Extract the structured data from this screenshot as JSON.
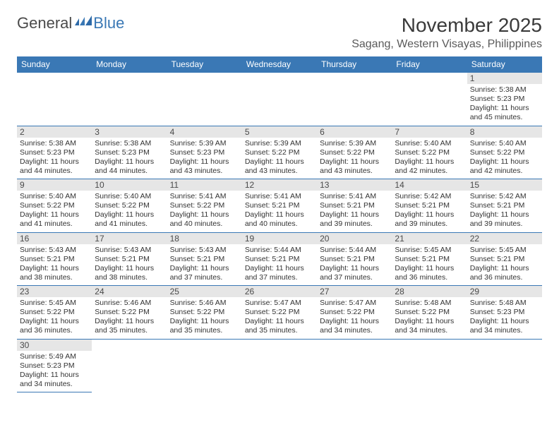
{
  "logo": {
    "text1": "General",
    "text2": "Blue"
  },
  "title": "November 2025",
  "location": "Sagang, Western Visayas, Philippines",
  "colors": {
    "header_bg": "#3a78b5",
    "header_text": "#ffffff",
    "border": "#3a78b5",
    "daynum_bg": "#e6e6e6",
    "text": "#333333"
  },
  "weekdays": [
    "Sunday",
    "Monday",
    "Tuesday",
    "Wednesday",
    "Thursday",
    "Friday",
    "Saturday"
  ],
  "weeks": [
    [
      null,
      null,
      null,
      null,
      null,
      null,
      {
        "d": "1",
        "sr": "Sunrise: 5:38 AM",
        "ss": "Sunset: 5:23 PM",
        "dl1": "Daylight: 11 hours",
        "dl2": "and 45 minutes."
      }
    ],
    [
      {
        "d": "2",
        "sr": "Sunrise: 5:38 AM",
        "ss": "Sunset: 5:23 PM",
        "dl1": "Daylight: 11 hours",
        "dl2": "and 44 minutes."
      },
      {
        "d": "3",
        "sr": "Sunrise: 5:38 AM",
        "ss": "Sunset: 5:23 PM",
        "dl1": "Daylight: 11 hours",
        "dl2": "and 44 minutes."
      },
      {
        "d": "4",
        "sr": "Sunrise: 5:39 AM",
        "ss": "Sunset: 5:23 PM",
        "dl1": "Daylight: 11 hours",
        "dl2": "and 43 minutes."
      },
      {
        "d": "5",
        "sr": "Sunrise: 5:39 AM",
        "ss": "Sunset: 5:22 PM",
        "dl1": "Daylight: 11 hours",
        "dl2": "and 43 minutes."
      },
      {
        "d": "6",
        "sr": "Sunrise: 5:39 AM",
        "ss": "Sunset: 5:22 PM",
        "dl1": "Daylight: 11 hours",
        "dl2": "and 43 minutes."
      },
      {
        "d": "7",
        "sr": "Sunrise: 5:40 AM",
        "ss": "Sunset: 5:22 PM",
        "dl1": "Daylight: 11 hours",
        "dl2": "and 42 minutes."
      },
      {
        "d": "8",
        "sr": "Sunrise: 5:40 AM",
        "ss": "Sunset: 5:22 PM",
        "dl1": "Daylight: 11 hours",
        "dl2": "and 42 minutes."
      }
    ],
    [
      {
        "d": "9",
        "sr": "Sunrise: 5:40 AM",
        "ss": "Sunset: 5:22 PM",
        "dl1": "Daylight: 11 hours",
        "dl2": "and 41 minutes."
      },
      {
        "d": "10",
        "sr": "Sunrise: 5:40 AM",
        "ss": "Sunset: 5:22 PM",
        "dl1": "Daylight: 11 hours",
        "dl2": "and 41 minutes."
      },
      {
        "d": "11",
        "sr": "Sunrise: 5:41 AM",
        "ss": "Sunset: 5:22 PM",
        "dl1": "Daylight: 11 hours",
        "dl2": "and 40 minutes."
      },
      {
        "d": "12",
        "sr": "Sunrise: 5:41 AM",
        "ss": "Sunset: 5:21 PM",
        "dl1": "Daylight: 11 hours",
        "dl2": "and 40 minutes."
      },
      {
        "d": "13",
        "sr": "Sunrise: 5:41 AM",
        "ss": "Sunset: 5:21 PM",
        "dl1": "Daylight: 11 hours",
        "dl2": "and 39 minutes."
      },
      {
        "d": "14",
        "sr": "Sunrise: 5:42 AM",
        "ss": "Sunset: 5:21 PM",
        "dl1": "Daylight: 11 hours",
        "dl2": "and 39 minutes."
      },
      {
        "d": "15",
        "sr": "Sunrise: 5:42 AM",
        "ss": "Sunset: 5:21 PM",
        "dl1": "Daylight: 11 hours",
        "dl2": "and 39 minutes."
      }
    ],
    [
      {
        "d": "16",
        "sr": "Sunrise: 5:43 AM",
        "ss": "Sunset: 5:21 PM",
        "dl1": "Daylight: 11 hours",
        "dl2": "and 38 minutes."
      },
      {
        "d": "17",
        "sr": "Sunrise: 5:43 AM",
        "ss": "Sunset: 5:21 PM",
        "dl1": "Daylight: 11 hours",
        "dl2": "and 38 minutes."
      },
      {
        "d": "18",
        "sr": "Sunrise: 5:43 AM",
        "ss": "Sunset: 5:21 PM",
        "dl1": "Daylight: 11 hours",
        "dl2": "and 37 minutes."
      },
      {
        "d": "19",
        "sr": "Sunrise: 5:44 AM",
        "ss": "Sunset: 5:21 PM",
        "dl1": "Daylight: 11 hours",
        "dl2": "and 37 minutes."
      },
      {
        "d": "20",
        "sr": "Sunrise: 5:44 AM",
        "ss": "Sunset: 5:21 PM",
        "dl1": "Daylight: 11 hours",
        "dl2": "and 37 minutes."
      },
      {
        "d": "21",
        "sr": "Sunrise: 5:45 AM",
        "ss": "Sunset: 5:21 PM",
        "dl1": "Daylight: 11 hours",
        "dl2": "and 36 minutes."
      },
      {
        "d": "22",
        "sr": "Sunrise: 5:45 AM",
        "ss": "Sunset: 5:21 PM",
        "dl1": "Daylight: 11 hours",
        "dl2": "and 36 minutes."
      }
    ],
    [
      {
        "d": "23",
        "sr": "Sunrise: 5:45 AM",
        "ss": "Sunset: 5:22 PM",
        "dl1": "Daylight: 11 hours",
        "dl2": "and 36 minutes."
      },
      {
        "d": "24",
        "sr": "Sunrise: 5:46 AM",
        "ss": "Sunset: 5:22 PM",
        "dl1": "Daylight: 11 hours",
        "dl2": "and 35 minutes."
      },
      {
        "d": "25",
        "sr": "Sunrise: 5:46 AM",
        "ss": "Sunset: 5:22 PM",
        "dl1": "Daylight: 11 hours",
        "dl2": "and 35 minutes."
      },
      {
        "d": "26",
        "sr": "Sunrise: 5:47 AM",
        "ss": "Sunset: 5:22 PM",
        "dl1": "Daylight: 11 hours",
        "dl2": "and 35 minutes."
      },
      {
        "d": "27",
        "sr": "Sunrise: 5:47 AM",
        "ss": "Sunset: 5:22 PM",
        "dl1": "Daylight: 11 hours",
        "dl2": "and 34 minutes."
      },
      {
        "d": "28",
        "sr": "Sunrise: 5:48 AM",
        "ss": "Sunset: 5:22 PM",
        "dl1": "Daylight: 11 hours",
        "dl2": "and 34 minutes."
      },
      {
        "d": "29",
        "sr": "Sunrise: 5:48 AM",
        "ss": "Sunset: 5:23 PM",
        "dl1": "Daylight: 11 hours",
        "dl2": "and 34 minutes."
      }
    ],
    [
      {
        "d": "30",
        "sr": "Sunrise: 5:49 AM",
        "ss": "Sunset: 5:23 PM",
        "dl1": "Daylight: 11 hours",
        "dl2": "and 34 minutes."
      },
      null,
      null,
      null,
      null,
      null,
      null
    ]
  ]
}
